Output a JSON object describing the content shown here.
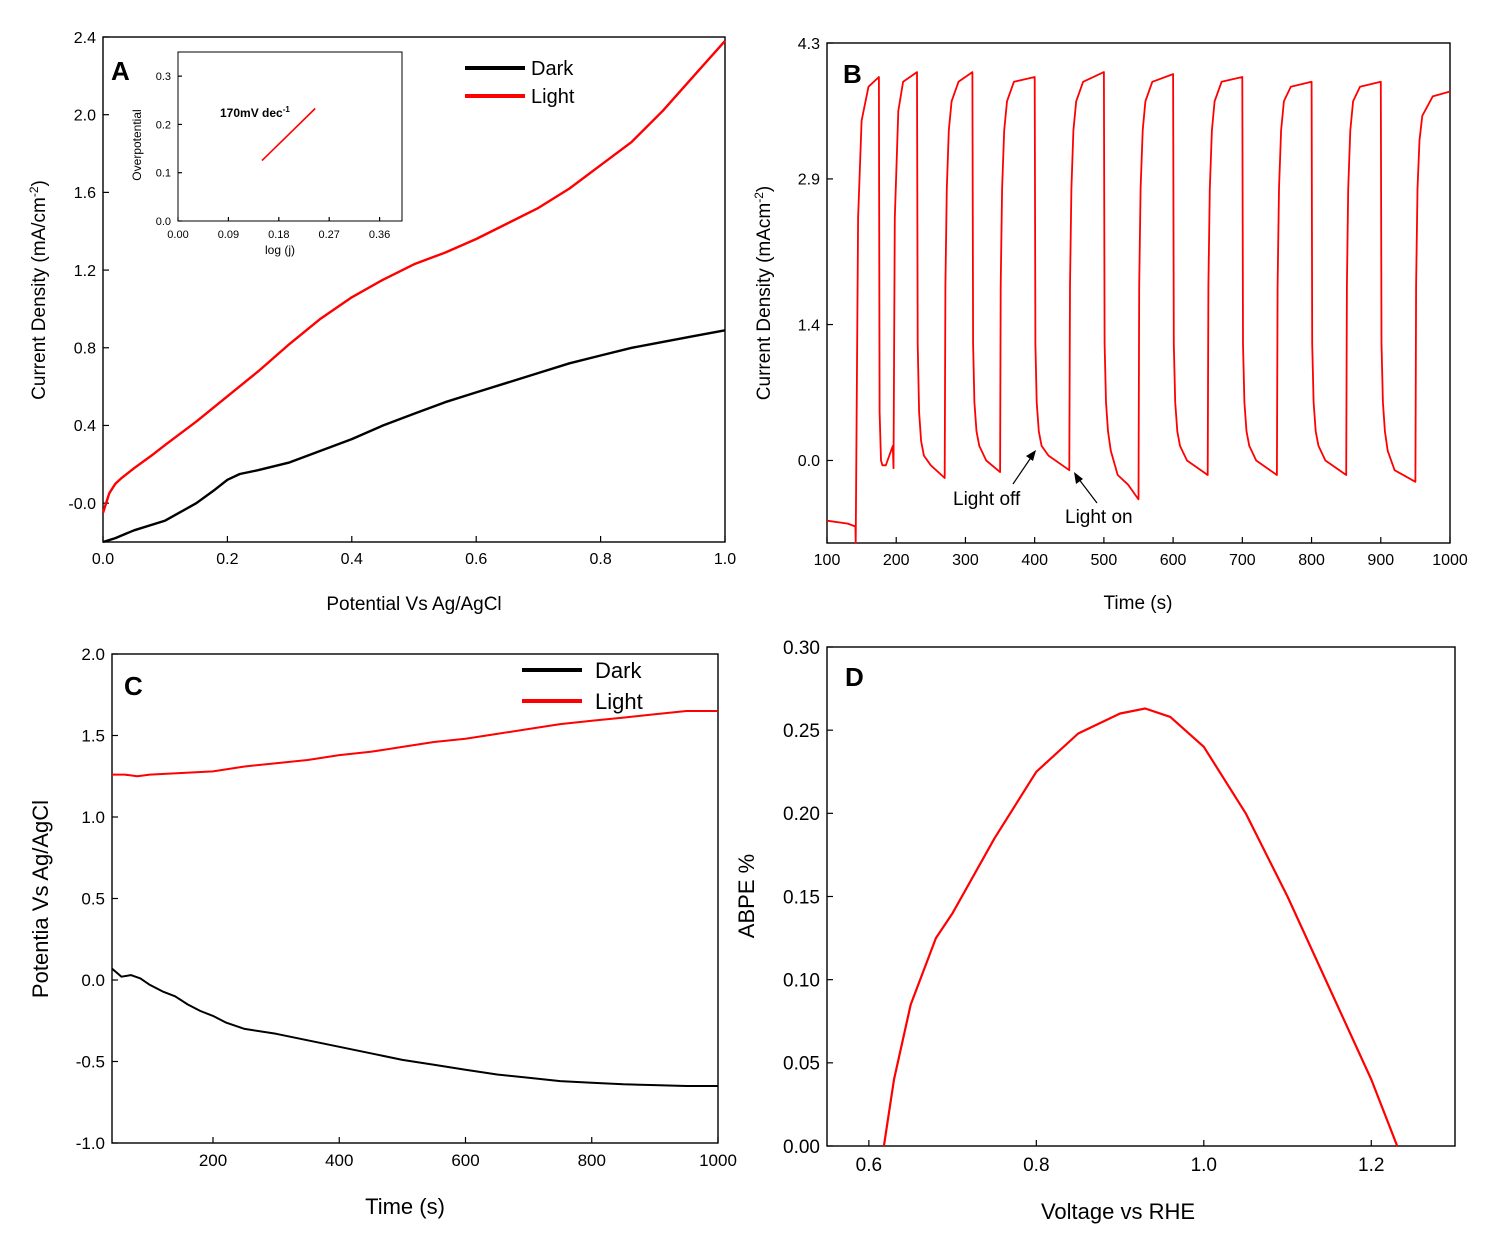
{
  "chart_data": [
    {
      "panel": "A",
      "type": "line",
      "xlabel": "Potential Vs Ag/AgCl",
      "ylabel": "Current Density (mA/cm",
      "ylabel_sup": "-2",
      "ylabel_close": ")",
      "xlim": [
        0.0,
        1.0
      ],
      "ylim": [
        -0.2,
        2.4
      ],
      "xticks": [
        "0.0",
        "0.2",
        "0.4",
        "0.6",
        "0.8",
        "1.0"
      ],
      "yticks": [
        "-0.0",
        "0.4",
        "0.8",
        "1.2",
        "1.6",
        "2.0",
        "2.4"
      ],
      "legend": [
        "Dark",
        "Light"
      ],
      "series": [
        {
          "name": "Dark",
          "color": "#000000",
          "x": [
            0.0,
            0.02,
            0.05,
            0.1,
            0.15,
            0.18,
            0.2,
            0.22,
            0.25,
            0.3,
            0.35,
            0.4,
            0.45,
            0.5,
            0.55,
            0.6,
            0.65,
            0.7,
            0.75,
            0.8,
            0.85,
            0.9,
            0.95,
            1.0
          ],
          "y": [
            -0.2,
            -0.18,
            -0.14,
            -0.09,
            0.0,
            0.07,
            0.12,
            0.15,
            0.17,
            0.21,
            0.27,
            0.33,
            0.4,
            0.46,
            0.52,
            0.57,
            0.62,
            0.67,
            0.72,
            0.76,
            0.8,
            0.83,
            0.86,
            0.89
          ]
        },
        {
          "name": "Light",
          "color": "#ff0000",
          "x": [
            0.0,
            0.005,
            0.01,
            0.02,
            0.03,
            0.05,
            0.08,
            0.1,
            0.15,
            0.2,
            0.25,
            0.3,
            0.35,
            0.4,
            0.45,
            0.5,
            0.55,
            0.6,
            0.65,
            0.7,
            0.75,
            0.8,
            0.85,
            0.9,
            0.95,
            1.0
          ],
          "y": [
            -0.05,
            0.0,
            0.05,
            0.1,
            0.13,
            0.18,
            0.25,
            0.3,
            0.42,
            0.55,
            0.68,
            0.82,
            0.95,
            1.06,
            1.15,
            1.23,
            1.29,
            1.36,
            1.44,
            1.52,
            1.62,
            1.74,
            1.86,
            2.02,
            2.2,
            2.38
          ]
        }
      ],
      "inset": {
        "xlabel": "log (j)",
        "ylabel": "Overpotential",
        "xlim": [
          0.0,
          0.4
        ],
        "ylim": [
          0.0,
          0.35
        ],
        "xticks": [
          "0.00",
          "0.09",
          "0.18",
          "0.27",
          "0.36"
        ],
        "yticks": [
          "0.0",
          "0.1",
          "0.2",
          "0.3"
        ],
        "annotation": "170mV dec",
        "annotation_sup": "-1",
        "series": [
          {
            "name": "fit",
            "color": "#ff0000",
            "x": [
              0.15,
              0.245
            ],
            "y": [
              0.125,
              0.233
            ]
          }
        ]
      }
    },
    {
      "panel": "B",
      "type": "line",
      "xlabel": "Time (s)",
      "ylabel": "Current Density (mAcm",
      "ylabel_sup": "-2",
      "ylabel_close": ")",
      "xlim": [
        100,
        1000
      ],
      "ylim": [
        -0.85,
        4.3
      ],
      "xticks": [
        "100",
        "200",
        "300",
        "400",
        "500",
        "600",
        "700",
        "800",
        "900",
        "1000"
      ],
      "yticks": [
        "0.0",
        "1.4",
        "2.9",
        "4.3"
      ],
      "annotations": [
        "Light off",
        "Light on"
      ],
      "series": [
        {
          "name": "photocurrent",
          "color": "#ff0000",
          "x": [
            100,
            130,
            141,
            141.5,
            145,
            150,
            160,
            175,
            176,
            178,
            180,
            185,
            195,
            196,
            198,
            203,
            210,
            230,
            231,
            233,
            236,
            240,
            250,
            270,
            271,
            273,
            276,
            280,
            290,
            310,
            311,
            313,
            316,
            320,
            330,
            350,
            351,
            353,
            356,
            360,
            370,
            400,
            401,
            403,
            406,
            410,
            420,
            450,
            451,
            453,
            456,
            460,
            470,
            500,
            501,
            503,
            506,
            510,
            520,
            535,
            540,
            545,
            550,
            551,
            553,
            556,
            560,
            570,
            600,
            601,
            603,
            606,
            610,
            620,
            650,
            651,
            653,
            656,
            660,
            670,
            700,
            701,
            703,
            706,
            710,
            720,
            750,
            751,
            753,
            756,
            760,
            770,
            800,
            801,
            803,
            806,
            810,
            820,
            850,
            851,
            853,
            856,
            860,
            870,
            900,
            901,
            903,
            906,
            910,
            920,
            950,
            951,
            953,
            956,
            960,
            975,
            1000
          ],
          "y": [
            -0.62,
            -0.65,
            -0.68,
            -0.85,
            2.5,
            3.5,
            3.85,
            3.95,
            0.5,
            0.0,
            -0.05,
            -0.05,
            0.15,
            -0.08,
            2.5,
            3.6,
            3.9,
            4.0,
            1.2,
            0.5,
            0.2,
            0.05,
            -0.05,
            -0.18,
            1.8,
            2.8,
            3.4,
            3.7,
            3.9,
            4.0,
            1.2,
            0.6,
            0.3,
            0.15,
            0.0,
            -0.12,
            1.8,
            2.8,
            3.4,
            3.7,
            3.9,
            3.95,
            1.2,
            0.6,
            0.3,
            0.15,
            0.05,
            -0.1,
            1.8,
            2.8,
            3.4,
            3.7,
            3.9,
            4.0,
            1.2,
            0.6,
            0.3,
            0.1,
            -0.15,
            -0.25,
            -0.3,
            -0.35,
            -0.4,
            1.8,
            2.8,
            3.4,
            3.7,
            3.9,
            3.98,
            1.2,
            0.6,
            0.3,
            0.15,
            0.0,
            -0.15,
            1.8,
            2.8,
            3.4,
            3.7,
            3.9,
            3.95,
            1.2,
            0.6,
            0.3,
            0.15,
            0.0,
            -0.15,
            1.8,
            2.8,
            3.4,
            3.7,
            3.85,
            3.9,
            1.2,
            0.6,
            0.3,
            0.15,
            0.0,
            -0.15,
            1.8,
            2.8,
            3.4,
            3.7,
            3.85,
            3.9,
            1.2,
            0.6,
            0.3,
            0.1,
            -0.1,
            -0.22,
            1.8,
            2.8,
            3.3,
            3.55,
            3.75,
            3.8
          ]
        }
      ]
    },
    {
      "panel": "C",
      "type": "line",
      "xlabel": "Time (s)",
      "ylabel": "Potentia Vs Ag/AgCl",
      "xlim": [
        40,
        1000
      ],
      "ylim": [
        -1.0,
        2.0
      ],
      "xticks": [
        "200",
        "400",
        "600",
        "800",
        "1000"
      ],
      "xtick_values": [
        200,
        400,
        600,
        800,
        1000
      ],
      "yticks": [
        "-1.0",
        "-0.5",
        "0.0",
        "0.5",
        "1.0",
        "1.5",
        "2.0"
      ],
      "legend": [
        "Dark",
        "Light"
      ],
      "series": [
        {
          "name": "Dark",
          "color": "#000000",
          "x": [
            40,
            55,
            70,
            85,
            100,
            120,
            140,
            160,
            180,
            200,
            220,
            250,
            300,
            350,
            400,
            450,
            500,
            550,
            600,
            650,
            700,
            750,
            800,
            850,
            900,
            950,
            1000
          ],
          "y": [
            0.07,
            0.02,
            0.03,
            0.01,
            -0.03,
            -0.07,
            -0.1,
            -0.15,
            -0.19,
            -0.22,
            -0.26,
            -0.3,
            -0.33,
            -0.37,
            -0.41,
            -0.45,
            -0.49,
            -0.52,
            -0.55,
            -0.58,
            -0.6,
            -0.62,
            -0.63,
            -0.64,
            -0.645,
            -0.65,
            -0.65
          ]
        },
        {
          "name": "Light",
          "color": "#ff0000",
          "x": [
            40,
            60,
            80,
            100,
            150,
            200,
            250,
            300,
            350,
            400,
            450,
            500,
            550,
            600,
            650,
            700,
            750,
            800,
            850,
            900,
            950,
            1000
          ],
          "y": [
            1.26,
            1.26,
            1.25,
            1.26,
            1.27,
            1.28,
            1.31,
            1.33,
            1.35,
            1.38,
            1.4,
            1.43,
            1.46,
            1.48,
            1.51,
            1.54,
            1.57,
            1.59,
            1.61,
            1.63,
            1.65,
            1.65
          ]
        }
      ]
    },
    {
      "panel": "D",
      "type": "line",
      "xlabel": "Voltage vs RHE",
      "ylabel": "ABPE %",
      "xlim": [
        0.55,
        1.3
      ],
      "ylim": [
        0.0,
        0.3
      ],
      "xticks": [
        "0.6",
        "0.8",
        "1.0",
        "1.2"
      ],
      "xtick_values": [
        0.6,
        0.8,
        1.0,
        1.2
      ],
      "yticks": [
        "0.00",
        "0.05",
        "0.10",
        "0.15",
        "0.20",
        "0.25",
        "0.30"
      ],
      "series": [
        {
          "name": "ABPE",
          "color": "#ff0000",
          "x": [
            0.618,
            0.63,
            0.65,
            0.68,
            0.7,
            0.75,
            0.8,
            0.85,
            0.9,
            0.93,
            0.96,
            1.0,
            1.05,
            1.1,
            1.15,
            1.2,
            1.231
          ],
          "y": [
            0.0,
            0.04,
            0.085,
            0.125,
            0.14,
            0.185,
            0.225,
            0.248,
            0.26,
            0.263,
            0.258,
            0.24,
            0.2,
            0.15,
            0.095,
            0.04,
            0.0
          ]
        }
      ]
    }
  ]
}
